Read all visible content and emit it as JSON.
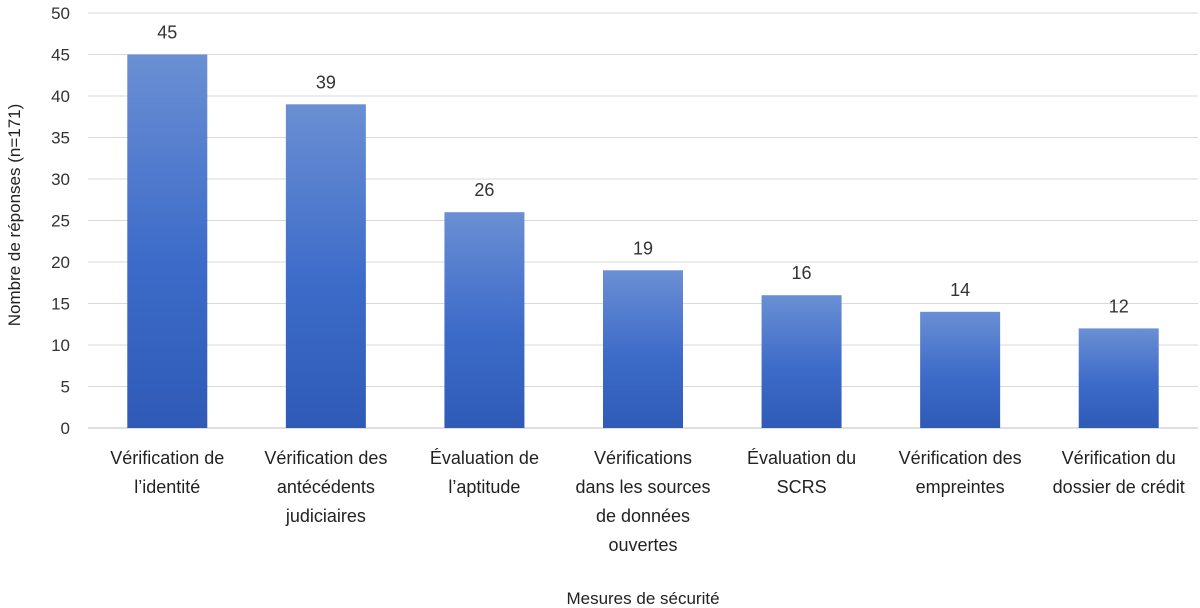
{
  "chart_data": {
    "type": "bar",
    "xlabel": "Mesures de sécurité",
    "ylabel": "Nombre de réponses (n=171)",
    "ylim": [
      0,
      50
    ],
    "yticks": [
      0,
      5,
      10,
      15,
      20,
      25,
      30,
      35,
      40,
      45,
      50
    ],
    "grid": true,
    "categories": [
      [
        "Vérification de",
        "l’identité"
      ],
      [
        "Vérification des",
        "antécédents",
        "judiciaires"
      ],
      [
        "Évaluation de",
        "l’aptitude"
      ],
      [
        "Vérifications",
        "dans les sources",
        "de données",
        "ouvertes"
      ],
      [
        "Évaluation du",
        "SCRS"
      ],
      [
        "Vérification des",
        "empreintes"
      ],
      [
        "Vérification du",
        "dossier de crédit"
      ]
    ],
    "values": [
      45,
      39,
      26,
      19,
      16,
      14,
      12
    ],
    "bar_color": "#4472C4",
    "data_labels": true
  }
}
